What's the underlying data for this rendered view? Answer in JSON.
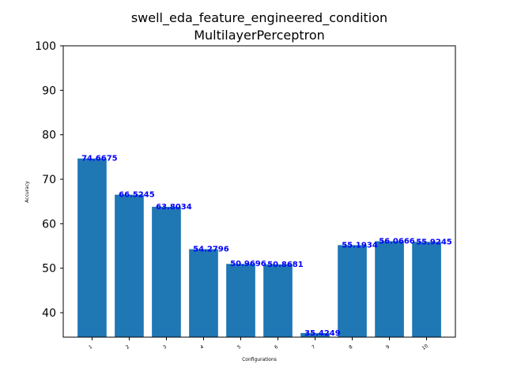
{
  "chart_data": {
    "type": "bar",
    "title": "swell_eda_feature_engineered_condition",
    "subtitle": "MultilayerPerceptron",
    "xlabel": "Configurations",
    "ylabel": "Accuracy",
    "categories": [
      "1",
      "2",
      "3",
      "4",
      "5",
      "6",
      "7",
      "8",
      "9",
      "10"
    ],
    "values": [
      74.6675,
      66.5245,
      63.8034,
      54.2796,
      50.9696,
      50.8681,
      35.4249,
      55.1934,
      56.0666,
      55.9245
    ],
    "data_labels": [
      "74.6675",
      "66.5245",
      "63.8034",
      "54.2796",
      "50.9696",
      "50.8681",
      "35.4249",
      "55.1934",
      "56.0666",
      "55.9245"
    ],
    "ylim": [
      34.5,
      100
    ],
    "yticks": [
      "40",
      "50",
      "60",
      "70",
      "80",
      "90",
      "100"
    ],
    "grid": false,
    "legend": "none",
    "bar_color": "#1f77b4",
    "label_color": "#0000ff"
  }
}
